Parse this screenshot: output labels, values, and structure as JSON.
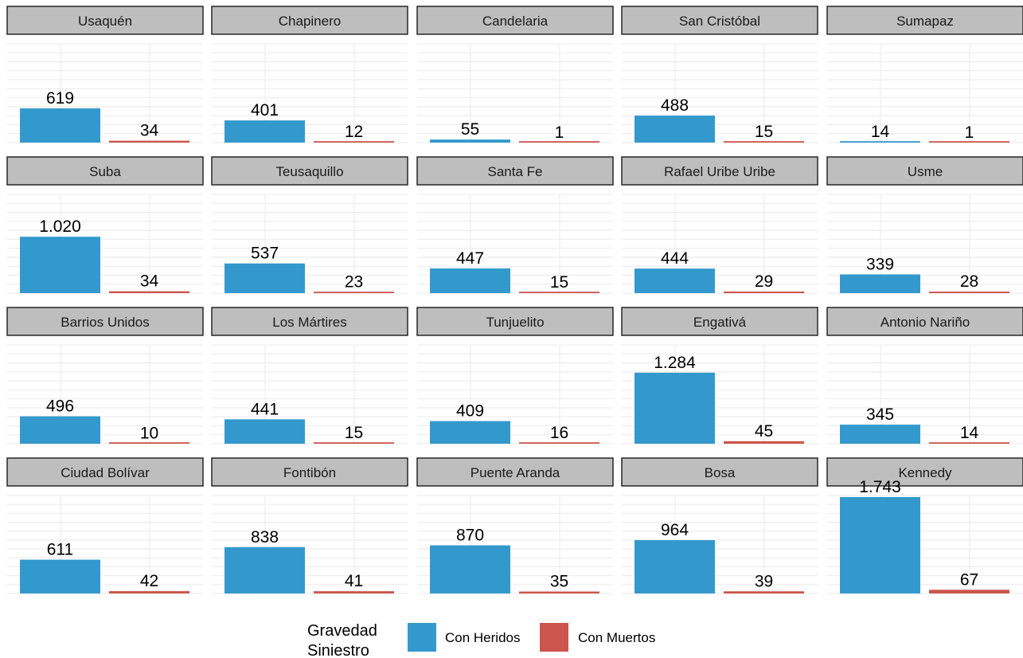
{
  "chart_data": {
    "type": "bar",
    "facet_by": "localidad",
    "categories": [
      "Con Heridos",
      "Con Muertos"
    ],
    "colors": {
      "Con Heridos": "#3399cc",
      "Con Muertos": "#cc554d"
    },
    "ylim": [
      0,
      1800
    ],
    "grid": true,
    "facets": [
      {
        "name": "Usaquén",
        "values": [
          619,
          34
        ],
        "labels": [
          "619",
          "34"
        ]
      },
      {
        "name": "Chapinero",
        "values": [
          401,
          12
        ],
        "labels": [
          "401",
          "12"
        ]
      },
      {
        "name": "Candelaria",
        "values": [
          55,
          1
        ],
        "labels": [
          "55",
          "1"
        ]
      },
      {
        "name": "San Cristóbal",
        "values": [
          488,
          15
        ],
        "labels": [
          "488",
          "15"
        ]
      },
      {
        "name": "Sumapaz",
        "values": [
          14,
          1
        ],
        "labels": [
          "14",
          "1"
        ]
      },
      {
        "name": "Suba",
        "values": [
          1020,
          34
        ],
        "labels": [
          "1.020",
          "34"
        ]
      },
      {
        "name": "Teusaquillo",
        "values": [
          537,
          23
        ],
        "labels": [
          "537",
          "23"
        ]
      },
      {
        "name": "Santa Fe",
        "values": [
          447,
          15
        ],
        "labels": [
          "447",
          "15"
        ]
      },
      {
        "name": "Rafael Uribe Uribe",
        "values": [
          444,
          29
        ],
        "labels": [
          "444",
          "29"
        ]
      },
      {
        "name": "Usme",
        "values": [
          339,
          28
        ],
        "labels": [
          "339",
          "28"
        ]
      },
      {
        "name": "Barrios Unidos",
        "values": [
          496,
          10
        ],
        "labels": [
          "496",
          "10"
        ]
      },
      {
        "name": "Los Mártires",
        "values": [
          441,
          15
        ],
        "labels": [
          "441",
          "15"
        ]
      },
      {
        "name": "Tunjuelito",
        "values": [
          409,
          16
        ],
        "labels": [
          "409",
          "16"
        ]
      },
      {
        "name": "Engativá",
        "values": [
          1284,
          45
        ],
        "labels": [
          "1.284",
          "45"
        ]
      },
      {
        "name": "Antonio Nariño",
        "values": [
          345,
          14
        ],
        "labels": [
          "345",
          "14"
        ]
      },
      {
        "name": "Ciudad Bolívar",
        "values": [
          611,
          42
        ],
        "labels": [
          "611",
          "42"
        ]
      },
      {
        "name": "Fontibón",
        "values": [
          838,
          41
        ],
        "labels": [
          "838",
          "41"
        ]
      },
      {
        "name": "Puente Aranda",
        "values": [
          870,
          35
        ],
        "labels": [
          "870",
          "35"
        ]
      },
      {
        "name": "Bosa",
        "values": [
          964,
          39
        ],
        "labels": [
          "964",
          "39"
        ]
      },
      {
        "name": "Kennedy",
        "values": [
          1743,
          67
        ],
        "labels": [
          "1.743",
          "67"
        ]
      }
    ]
  },
  "legend": {
    "title_line1": "Gravedad",
    "title_line2": "Siniestro",
    "items": [
      {
        "label": "Con Heridos",
        "color": "#3399cc"
      },
      {
        "label": "Con Muertos",
        "color": "#cc554d"
      }
    ],
    "position": "bottom"
  }
}
